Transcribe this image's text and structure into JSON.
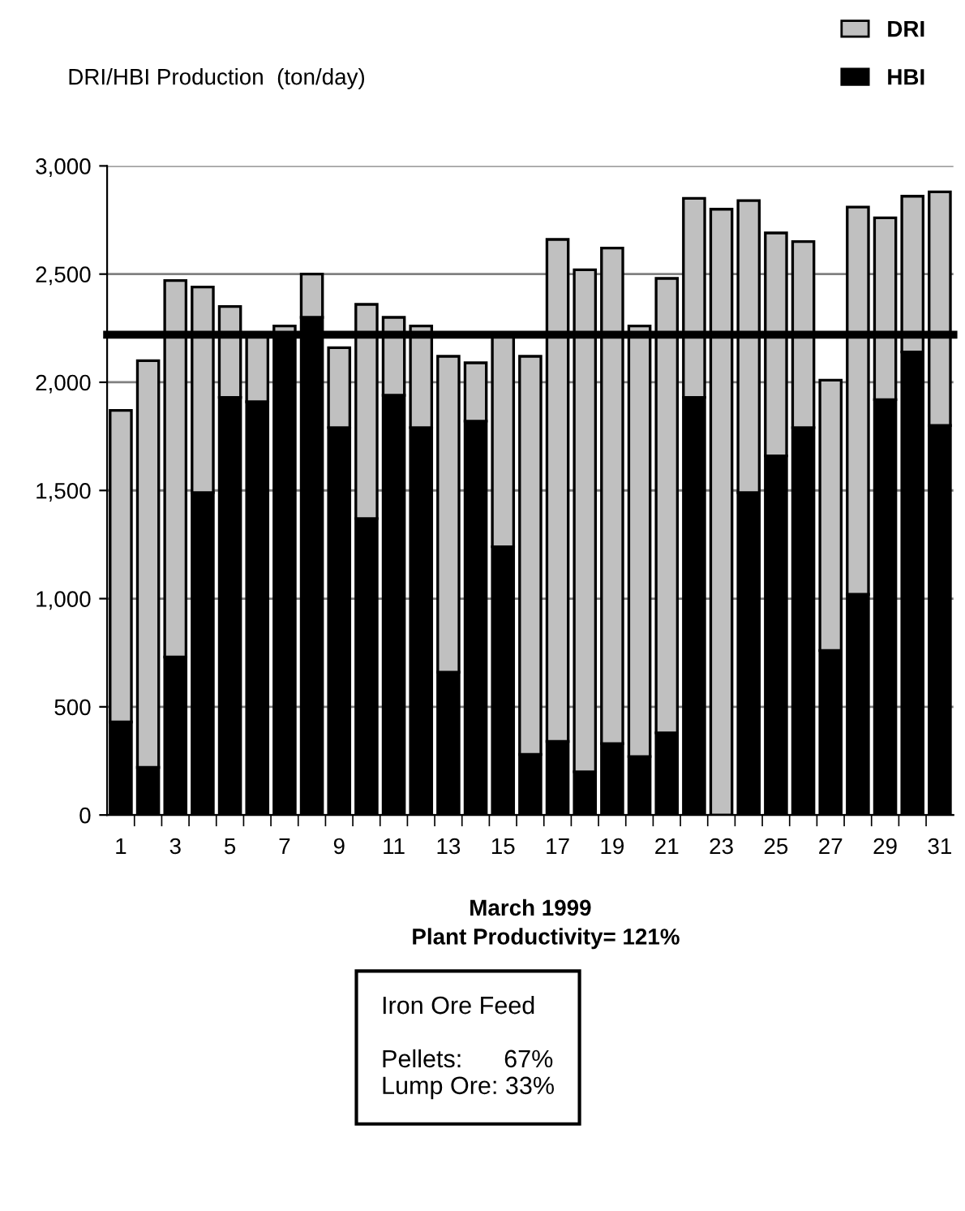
{
  "chart_data": {
    "type": "bar",
    "stacked": true,
    "title": "DRI/HBI Production  (ton/day)",
    "xlabel": "March 1999",
    "categories": [
      "1",
      null,
      "3",
      null,
      "5",
      null,
      "7",
      null,
      "9",
      null,
      "11",
      null,
      "13",
      null,
      "15",
      null,
      "17",
      null,
      "19",
      null,
      "21",
      null,
      "23",
      null,
      "25",
      null,
      "27",
      null,
      "29",
      null,
      "31"
    ],
    "series": [
      {
        "name": "HBI",
        "color": "#000000",
        "values": [
          430,
          220,
          730,
          1490,
          1930,
          1910,
          2220,
          2300,
          1790,
          1370,
          1940,
          1790,
          660,
          1820,
          1240,
          280,
          340,
          200,
          330,
          270,
          380,
          1930,
          0,
          1490,
          1660,
          1790,
          760,
          1020,
          1920,
          2140,
          1800
        ]
      },
      {
        "name": "DRI",
        "color": "#c0c0c0",
        "values": [
          1440,
          1880,
          1740,
          950,
          420,
          310,
          40,
          200,
          370,
          990,
          360,
          470,
          1460,
          270,
          980,
          1840,
          2320,
          2320,
          2290,
          1990,
          2100,
          920,
          2800,
          1350,
          1030,
          860,
          1250,
          1790,
          840,
          720,
          1080
        ]
      }
    ],
    "ylim": [
      0,
      3000
    ],
    "yticks": [
      {
        "value": 0,
        "label": "0"
      },
      {
        "value": 500,
        "label": "500"
      },
      {
        "value": 1000,
        "label": "1,000"
      },
      {
        "value": 1500,
        "label": "1,500"
      },
      {
        "value": 2000,
        "label": "2,000"
      },
      {
        "value": 2500,
        "label": "2,500"
      },
      {
        "value": 3000,
        "label": "3,000"
      }
    ],
    "grid": "y",
    "legend": "top right",
    "ref_lines": [
      {
        "axis": "y",
        "value": 2220,
        "color": "#000000"
      }
    ],
    "annotations": [
      "Plant Productivity= 121%",
      "Iron Ore Feed\n\nPellets:      67%\nLump Ore: 33%"
    ]
  }
}
